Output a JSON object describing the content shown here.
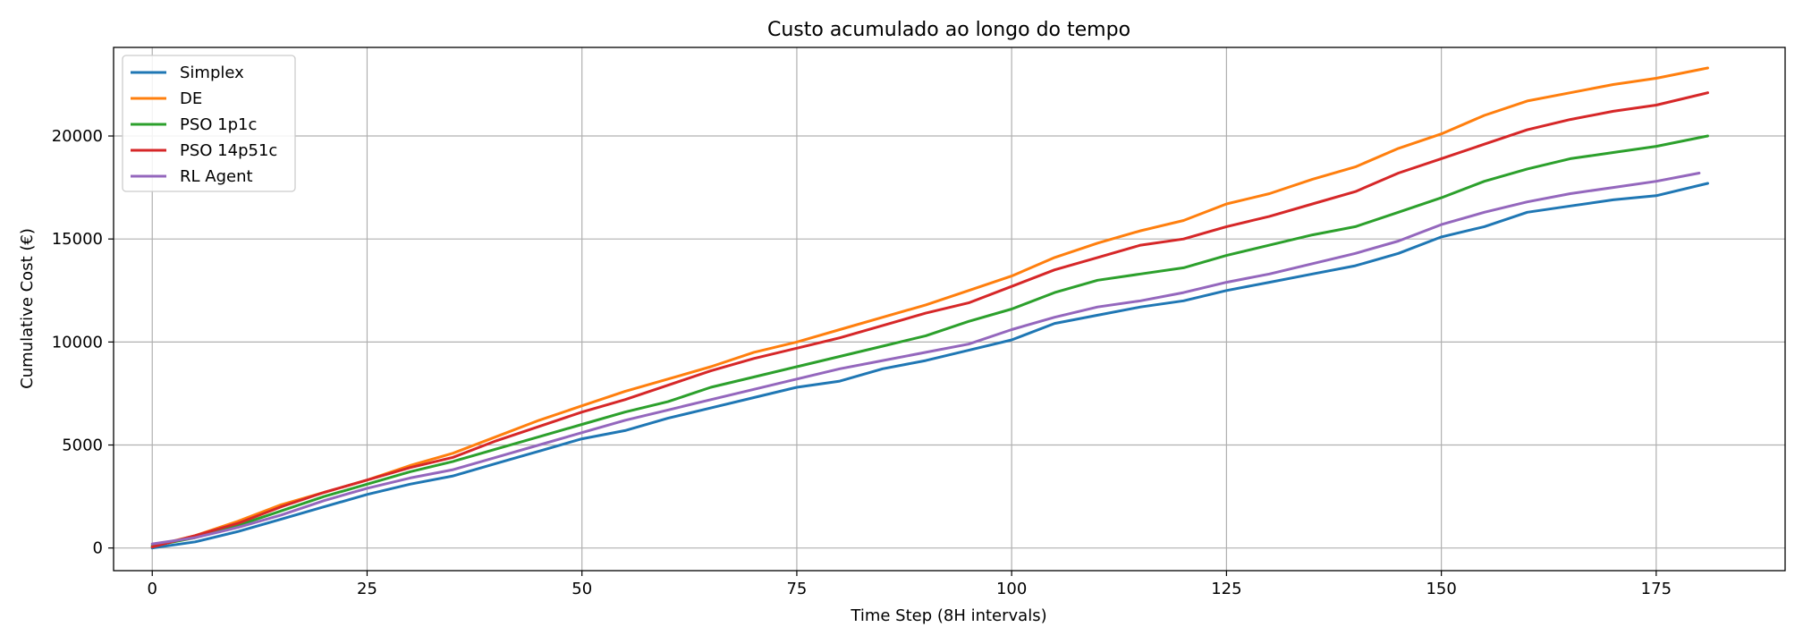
{
  "chart_data": {
    "type": "line",
    "title": "Custo acumulado ao longo do tempo",
    "xlabel": "Time Step (8H intervals)",
    "ylabel": "Cumulative Cost (€)",
    "xlim": [
      -4.5,
      190
    ],
    "ylim": [
      -1100,
      24300
    ],
    "xticks": [
      0,
      25,
      50,
      75,
      100,
      125,
      150,
      175
    ],
    "yticks": [
      0,
      5000,
      10000,
      15000,
      20000
    ],
    "grid": true,
    "legend_position": "upper-left",
    "series": [
      {
        "name": "Simplex",
        "color": "#1f77b4",
        "x": [
          0,
          5,
          10,
          15,
          20,
          25,
          30,
          35,
          40,
          45,
          50,
          55,
          60,
          65,
          70,
          75,
          80,
          85,
          90,
          95,
          100,
          105,
          110,
          115,
          120,
          125,
          130,
          135,
          140,
          145,
          150,
          155,
          160,
          165,
          170,
          175,
          181
        ],
        "y": [
          0,
          300,
          800,
          1400,
          2000,
          2600,
          3100,
          3500,
          4100,
          4700,
          5300,
          5700,
          6300,
          6800,
          7300,
          7800,
          8100,
          8700,
          9100,
          9600,
          10100,
          10900,
          11300,
          11700,
          12000,
          12500,
          12900,
          13300,
          13700,
          14300,
          15100,
          15600,
          16300,
          16600,
          16900,
          17100,
          17700
        ]
      },
      {
        "name": "DE",
        "color": "#ff7f0e",
        "x": [
          0,
          5,
          10,
          15,
          20,
          25,
          30,
          35,
          40,
          45,
          50,
          55,
          60,
          65,
          70,
          75,
          80,
          85,
          90,
          95,
          100,
          105,
          110,
          115,
          120,
          125,
          130,
          135,
          140,
          145,
          150,
          155,
          160,
          165,
          170,
          175,
          181
        ],
        "y": [
          100,
          600,
          1300,
          2100,
          2700,
          3300,
          4000,
          4600,
          5400,
          6200,
          6900,
          7600,
          8200,
          8800,
          9500,
          10000,
          10600,
          11200,
          11800,
          12500,
          13200,
          14100,
          14800,
          15400,
          15900,
          16700,
          17200,
          17900,
          18500,
          19400,
          20100,
          21000,
          21700,
          22100,
          22500,
          22800,
          23300
        ]
      },
      {
        "name": "PSO 1p1c",
        "color": "#2ca02c",
        "x": [
          0,
          5,
          10,
          15,
          20,
          25,
          30,
          35,
          40,
          45,
          50,
          55,
          60,
          65,
          70,
          75,
          80,
          85,
          90,
          95,
          100,
          105,
          110,
          115,
          120,
          125,
          130,
          135,
          140,
          145,
          150,
          155,
          160,
          165,
          170,
          175,
          181
        ],
        "y": [
          100,
          500,
          1100,
          1800,
          2500,
          3100,
          3700,
          4200,
          4800,
          5400,
          6000,
          6600,
          7100,
          7800,
          8300,
          8800,
          9300,
          9800,
          10300,
          11000,
          11600,
          12400,
          13000,
          13300,
          13600,
          14200,
          14700,
          15200,
          15600,
          16300,
          17000,
          17800,
          18400,
          18900,
          19200,
          19500,
          20000
        ]
      },
      {
        "name": "PSO 14p51c",
        "color": "#d62728",
        "x": [
          0,
          5,
          10,
          15,
          20,
          25,
          30,
          35,
          40,
          45,
          50,
          55,
          60,
          65,
          70,
          75,
          80,
          85,
          90,
          95,
          100,
          105,
          110,
          115,
          120,
          125,
          130,
          135,
          140,
          145,
          150,
          155,
          160,
          165,
          170,
          175,
          181
        ],
        "y": [
          50,
          600,
          1200,
          2000,
          2700,
          3300,
          3900,
          4400,
          5200,
          5900,
          6600,
          7200,
          7900,
          8600,
          9200,
          9700,
          10200,
          10800,
          11400,
          11900,
          12700,
          13500,
          14100,
          14700,
          15000,
          15600,
          16100,
          16700,
          17300,
          18200,
          18900,
          19600,
          20300,
          20800,
          21200,
          21500,
          22100
        ]
      },
      {
        "name": "RL Agent",
        "color": "#9467bd",
        "x": [
          0,
          5,
          10,
          15,
          20,
          25,
          30,
          35,
          40,
          45,
          50,
          55,
          60,
          65,
          70,
          75,
          80,
          85,
          90,
          95,
          100,
          105,
          110,
          115,
          120,
          125,
          130,
          135,
          140,
          145,
          150,
          155,
          160,
          165,
          170,
          175,
          180
        ],
        "y": [
          200,
          500,
          1000,
          1600,
          2300,
          2900,
          3400,
          3800,
          4400,
          5000,
          5600,
          6200,
          6700,
          7200,
          7700,
          8200,
          8700,
          9100,
          9500,
          9900,
          10600,
          11200,
          11700,
          12000,
          12400,
          12900,
          13300,
          13800,
          14300,
          14900,
          15700,
          16300,
          16800,
          17200,
          17500,
          17800,
          18200
        ]
      }
    ]
  }
}
